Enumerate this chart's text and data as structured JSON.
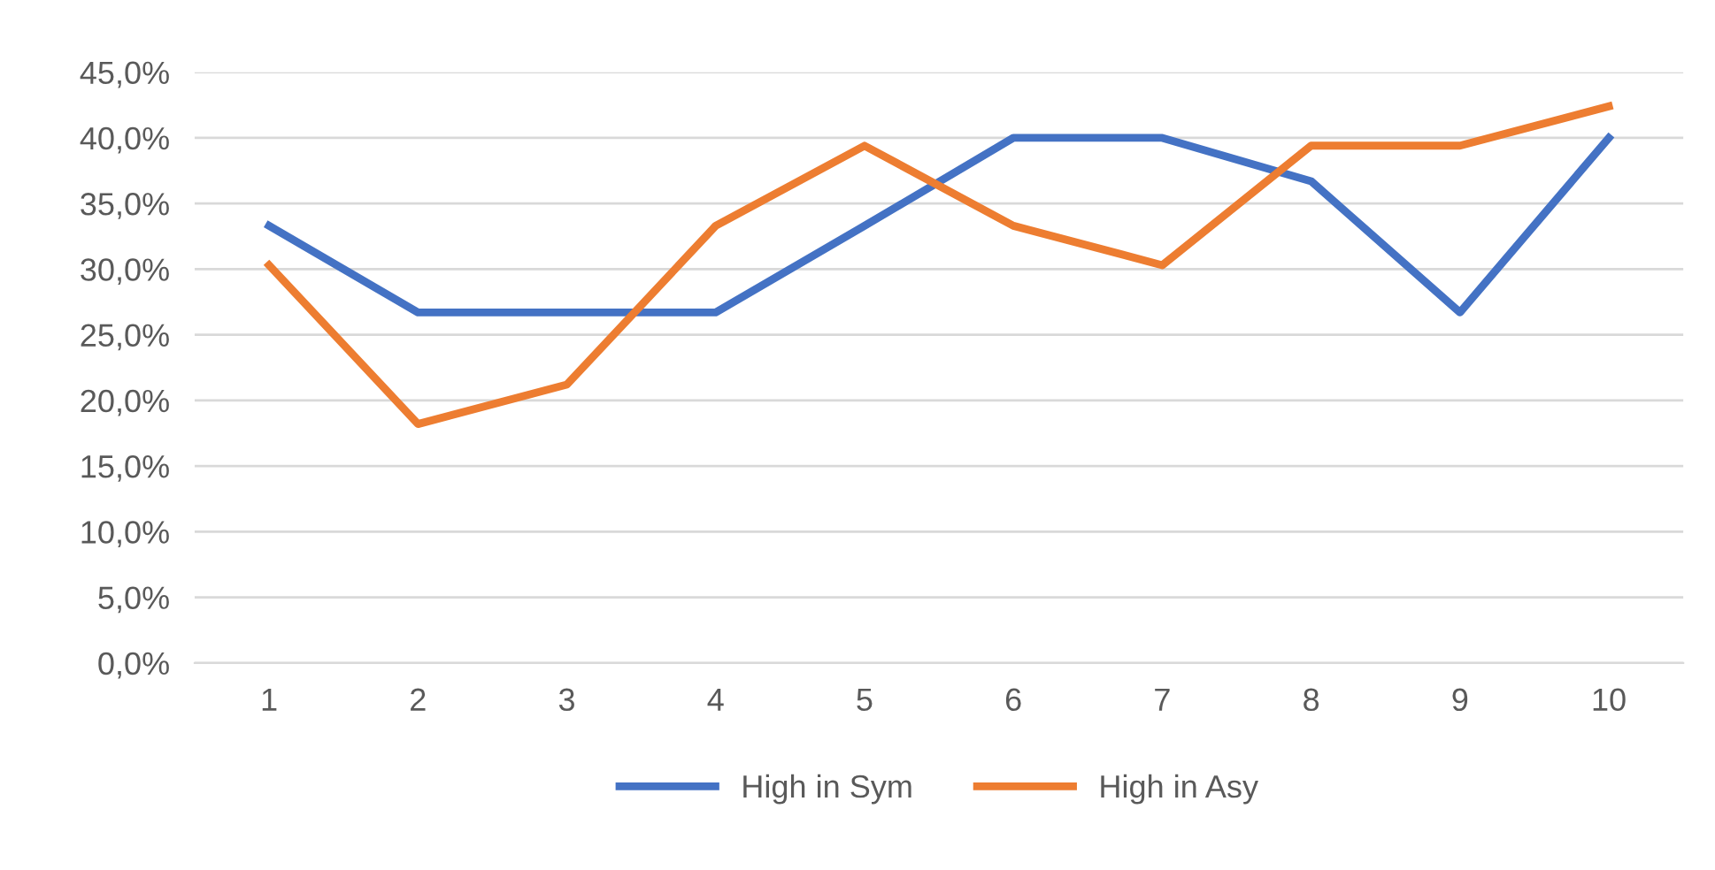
{
  "chart_data": {
    "type": "line",
    "categories": [
      "1",
      "2",
      "3",
      "4",
      "5",
      "6",
      "7",
      "8",
      "9",
      "10"
    ],
    "series": [
      {
        "name": "High in Sym",
        "color": "#4472c4",
        "values": [
          33.3,
          26.7,
          26.7,
          26.7,
          33.3,
          40.0,
          40.0,
          36.7,
          26.7,
          40.0
        ]
      },
      {
        "name": "High in Asy",
        "color": "#ed7d31",
        "values": [
          30.3,
          18.2,
          21.2,
          33.3,
          39.4,
          33.3,
          30.3,
          39.4,
          39.4,
          42.4
        ]
      }
    ],
    "ylim": [
      0,
      45
    ],
    "yticks": [
      {
        "value": 0,
        "label": "0,0%"
      },
      {
        "value": 5,
        "label": "5,0%"
      },
      {
        "value": 10,
        "label": "10,0%"
      },
      {
        "value": 15,
        "label": "15,0%"
      },
      {
        "value": 20,
        "label": "20,0%"
      },
      {
        "value": 25,
        "label": "25,0%"
      },
      {
        "value": 30,
        "label": "30,0%"
      },
      {
        "value": 35,
        "label": "35,0%"
      },
      {
        "value": 40,
        "label": "40,0%"
      },
      {
        "value": 45,
        "label": "45,0%"
      }
    ],
    "grid": "y",
    "legend": "bottom",
    "marker": "none",
    "line_style": "solid"
  }
}
